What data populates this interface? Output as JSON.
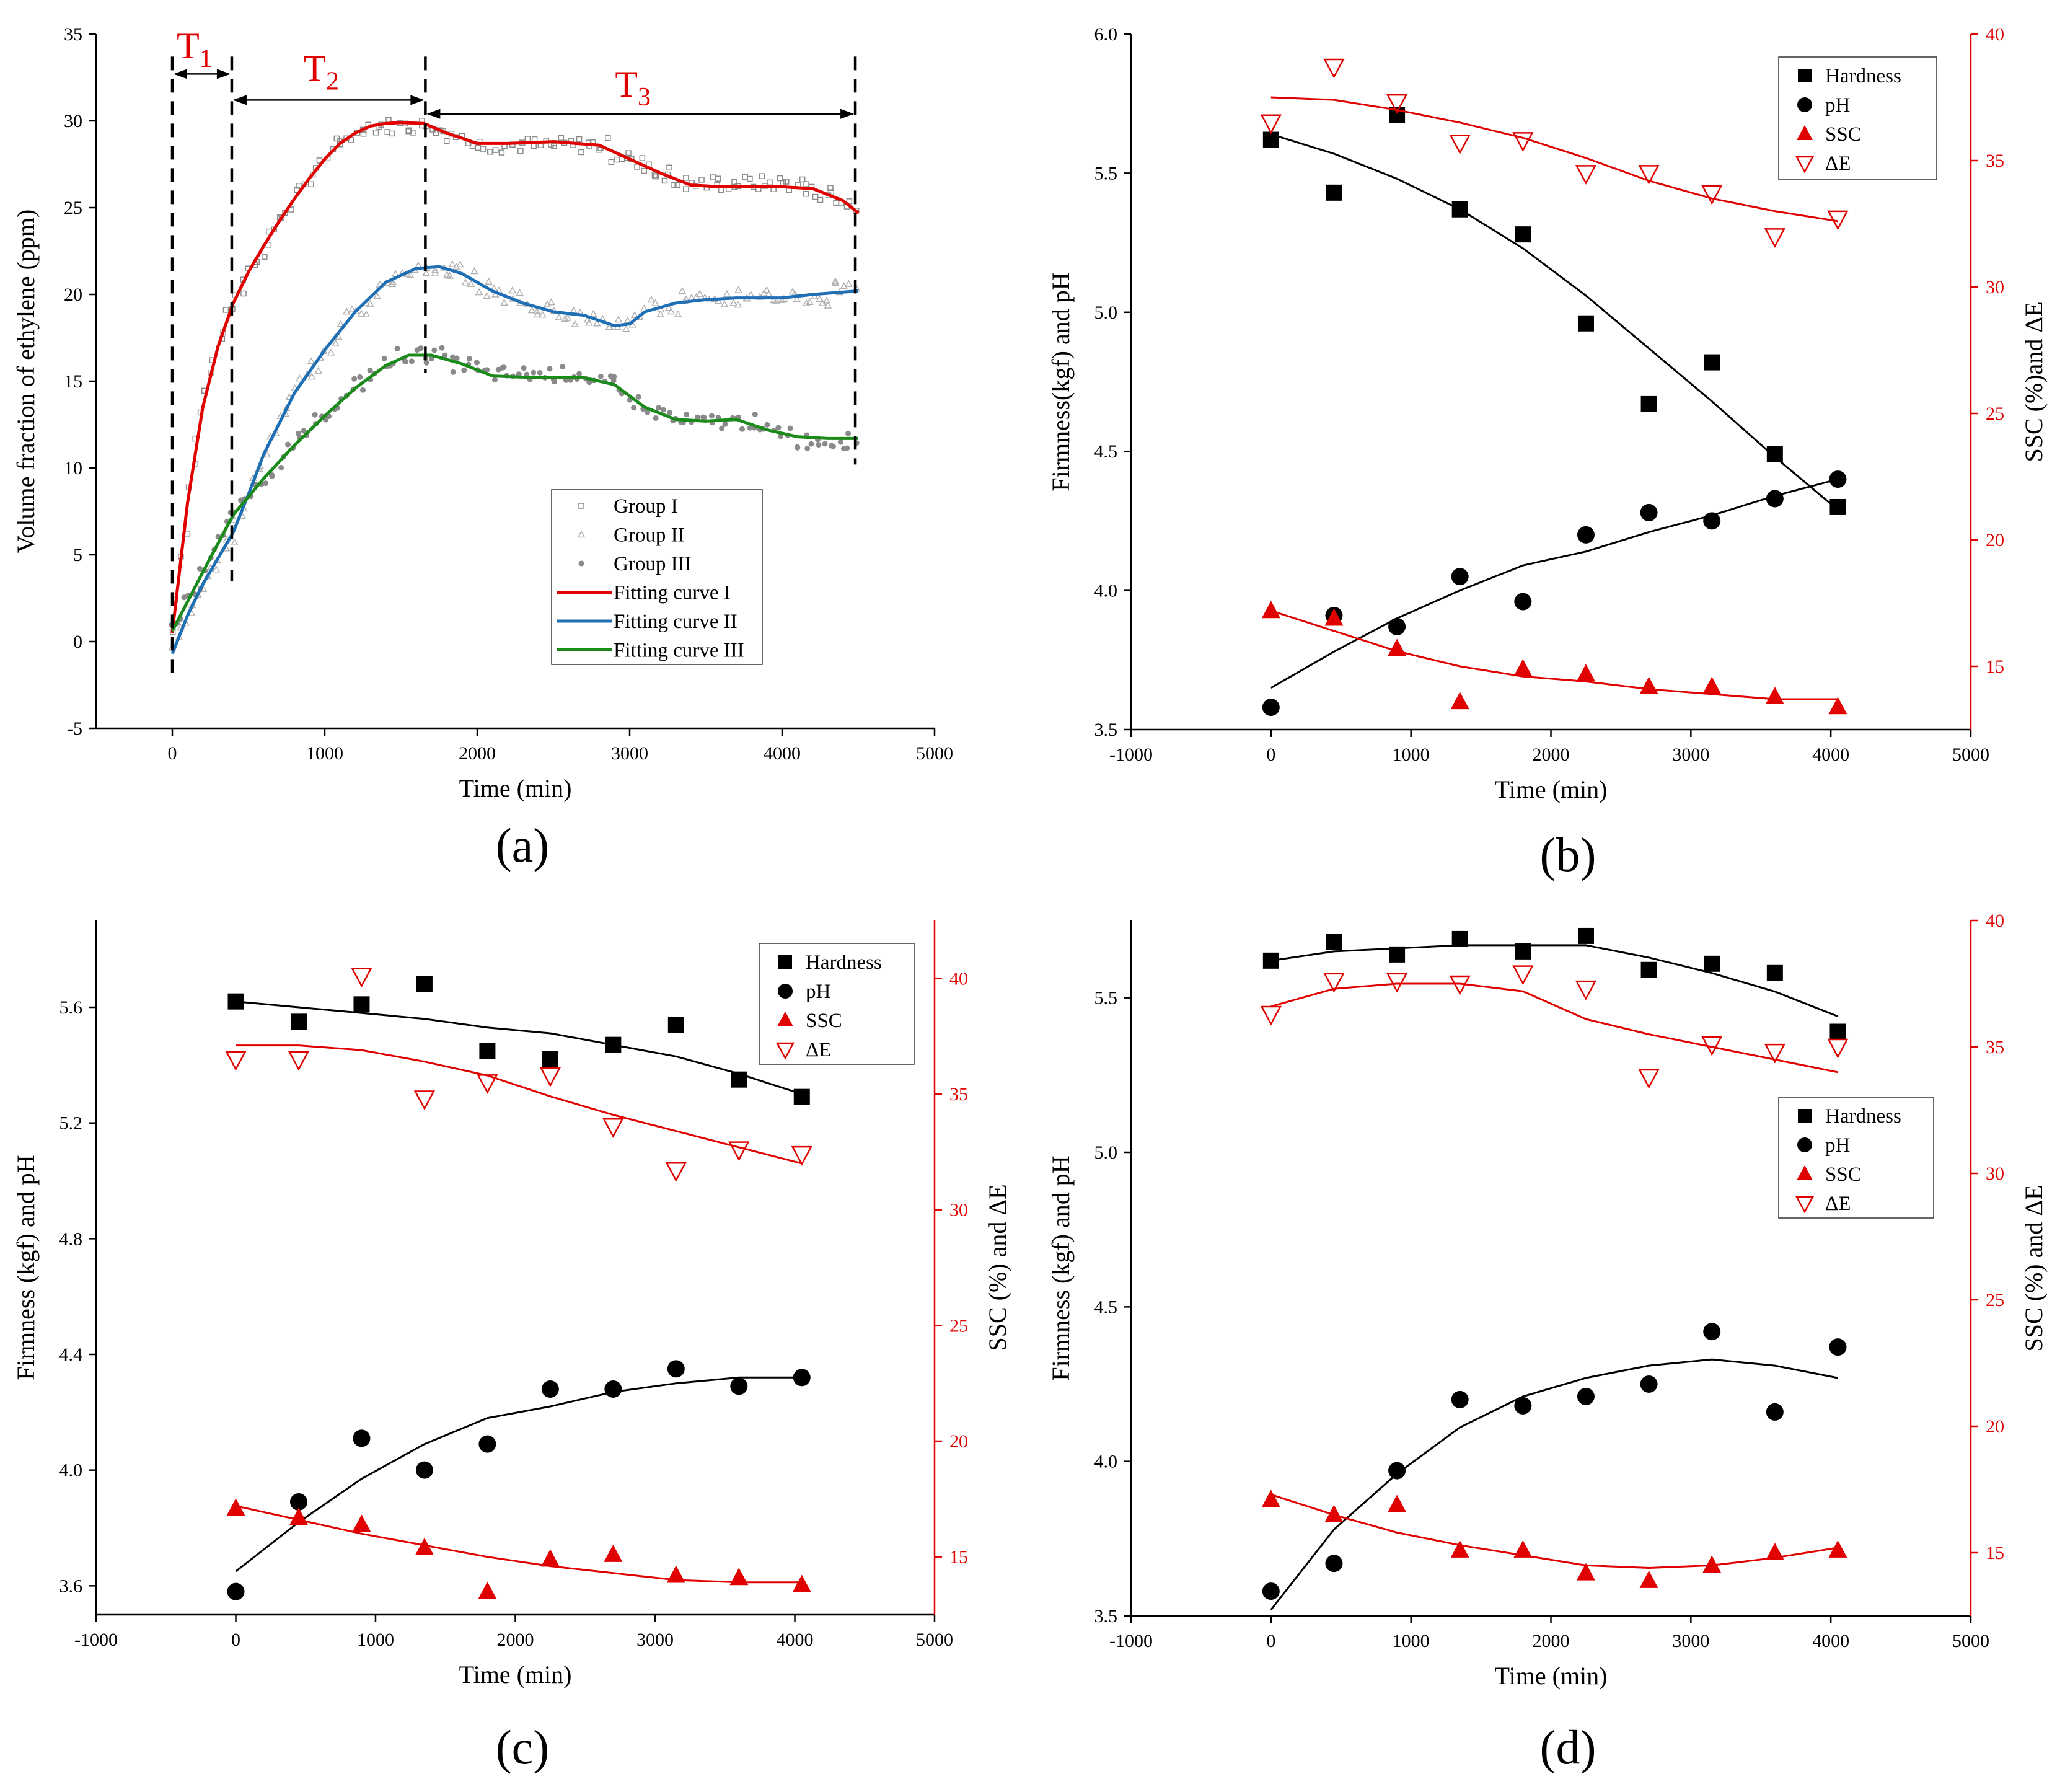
{
  "figure": {
    "panels_labels": [
      "(a)",
      "(b)",
      "(c)",
      "(d)"
    ]
  },
  "colors": {
    "black": "#000000",
    "red": "#e00000",
    "blue": "#1f6fb5",
    "green": "#1a8a1a",
    "gray": "#8a8a8a"
  },
  "chart_data": [
    {
      "id": "a",
      "type": "scatter",
      "panel_label": "(a)",
      "xlabel": "Time (min)",
      "ylabel": "Volume fraction of ethylene (ppm)",
      "xlim": [
        -500,
        5000
      ],
      "ylim": [
        -5,
        35
      ],
      "xticks": [
        0,
        1000,
        2000,
        3000,
        4000,
        5000
      ],
      "yticks": [
        -5,
        0,
        5,
        10,
        15,
        20,
        25,
        30,
        35
      ],
      "legend": [
        "Group I",
        "Group II",
        "Group III",
        "Fitting curve I",
        "Fitting curve II",
        "Fitting curve III"
      ],
      "phases": [
        {
          "label": "T1",
          "base": "T",
          "sub": "1",
          "from": 0,
          "to": 390
        },
        {
          "label": "T2",
          "base": "T",
          "sub": "2",
          "from": 390,
          "to": 1660
        },
        {
          "label": "T3",
          "base": "T",
          "sub": "3",
          "from": 1660,
          "to": 4480
        }
      ],
      "phase_boundaries": [
        0,
        390,
        1660,
        4480
      ],
      "series": [
        {
          "name": "Fitting curve I",
          "color": "#e00000",
          "x": [
            0,
            100,
            200,
            300,
            400,
            500,
            600,
            700,
            800,
            900,
            1000,
            1100,
            1200,
            1300,
            1400,
            1500,
            1650,
            1800,
            2000,
            2200,
            2500,
            2800,
            3000,
            3200,
            3400,
            3600,
            3800,
            4000,
            4200,
            4400,
            4500
          ],
          "y": [
            0.5,
            8,
            13.5,
            17,
            19.5,
            21.3,
            22.8,
            24.2,
            25.5,
            26.7,
            27.8,
            28.7,
            29.3,
            29.7,
            29.85,
            29.9,
            29.85,
            29.3,
            28.7,
            28.7,
            28.8,
            28.6,
            27.8,
            27,
            26.3,
            26.2,
            26.2,
            26.2,
            26.1,
            25.4,
            24.7
          ]
        },
        {
          "name": "Fitting curve II",
          "color": "#1f6fb5",
          "x": [
            0,
            100,
            200,
            300,
            400,
            500,
            600,
            800,
            1000,
            1200,
            1400,
            1600,
            1750,
            1900,
            2100,
            2300,
            2500,
            2700,
            2900,
            3000,
            3100,
            3300,
            3500,
            3700,
            4000,
            4200,
            4500
          ],
          "y": [
            -0.7,
            1.5,
            3.3,
            4.8,
            6.3,
            8.5,
            10.8,
            14.3,
            16.8,
            19,
            20.7,
            21.5,
            21.6,
            21.2,
            20.2,
            19.5,
            19,
            18.8,
            18.2,
            18.3,
            19,
            19.5,
            19.7,
            19.8,
            19.8,
            20,
            20.2
          ]
        },
        {
          "name": "Fitting curve III",
          "color": "#1a8a1a",
          "x": [
            0,
            200,
            400,
            600,
            800,
            1000,
            1200,
            1400,
            1550,
            1700,
            1900,
            2100,
            2400,
            2700,
            2900,
            3100,
            3300,
            3500,
            3700,
            3900,
            4100,
            4300,
            4500
          ],
          "y": [
            0.6,
            4,
            7.3,
            9.4,
            11.3,
            13,
            14.6,
            15.9,
            16.5,
            16.5,
            16,
            15.3,
            15.2,
            15.2,
            14.8,
            13.5,
            12.8,
            12.7,
            12.8,
            12.2,
            11.8,
            11.7,
            11.7
          ]
        }
      ]
    },
    {
      "id": "b",
      "type": "scatter",
      "panel_label": "(b)",
      "xlabel": "Time (min)",
      "ylabel": "Firmness(kgf) and pH",
      "y2label": "SSC (%)and ΔE",
      "xlim": [
        -1000,
        5000
      ],
      "ylim": [
        3.5,
        6.0
      ],
      "y2lim": [
        12.5,
        40
      ],
      "xticks": [
        -1000,
        0,
        1000,
        2000,
        3000,
        4000,
        5000
      ],
      "yticks": [
        3.5,
        4.0,
        4.5,
        5.0,
        5.5,
        6.0
      ],
      "ytick_labels": [
        "3.5",
        "4.0",
        "4.5",
        "5.0",
        "5.5",
        "6.0"
      ],
      "y2ticks": [
        15,
        20,
        25,
        30,
        35,
        40
      ],
      "legend": [
        "Hardness",
        "pH",
        "SSC",
        "ΔE"
      ],
      "x": [
        0,
        450,
        900,
        1350,
        1800,
        2250,
        2700,
        3150,
        3600,
        4050
      ],
      "series": [
        {
          "name": "Hardness",
          "axis": "left",
          "marker": "square",
          "color": "#000000",
          "values": [
            5.62,
            5.43,
            5.71,
            5.37,
            5.28,
            4.96,
            4.67,
            4.82,
            4.49,
            4.3
          ],
          "fit": [
            5.64,
            5.57,
            5.48,
            5.37,
            5.23,
            5.06,
            4.87,
            4.68,
            4.48,
            4.29
          ]
        },
        {
          "name": "pH",
          "axis": "left",
          "marker": "circle",
          "color": "#000000",
          "values": [
            3.58,
            3.91,
            3.87,
            4.05,
            3.96,
            4.2,
            4.28,
            4.25,
            4.33,
            4.4
          ],
          "fit": [
            3.65,
            3.78,
            3.9,
            4.0,
            4.09,
            4.14,
            4.21,
            4.27,
            4.34,
            4.4
          ]
        },
        {
          "name": "SSC",
          "axis": "right",
          "marker": "triangle-up",
          "color": "#e00000",
          "values": [
            17.2,
            16.9,
            15.7,
            13.6,
            14.9,
            14.7,
            14.2,
            14.2,
            13.8,
            13.4
          ],
          "fit": [
            17.2,
            16.4,
            15.6,
            15.0,
            14.6,
            14.4,
            14.1,
            13.9,
            13.7,
            13.7
          ]
        },
        {
          "name": "ΔE",
          "axis": "right",
          "marker": "triangle-down-open",
          "color": "#e00000",
          "values": [
            36.5,
            38.7,
            37.3,
            35.7,
            35.8,
            34.5,
            34.5,
            33.7,
            32.0,
            32.7
          ],
          "fit": [
            37.5,
            37.4,
            37.0,
            36.5,
            35.9,
            35.1,
            34.2,
            33.5,
            33.0,
            32.6
          ]
        }
      ]
    },
    {
      "id": "c",
      "type": "scatter",
      "panel_label": "(c)",
      "xlabel": "Time (min)",
      "ylabel": "Firmness (kgf) and pH",
      "y2label": "SSC (%) and ΔE",
      "xlim": [
        -1000,
        5000
      ],
      "ylim": [
        3.5,
        5.9
      ],
      "y2lim": [
        12.5,
        42.5
      ],
      "xticks": [
        -1000,
        0,
        1000,
        2000,
        3000,
        4000,
        5000
      ],
      "yticks": [
        3.6,
        4.0,
        4.4,
        4.8,
        5.2,
        5.6
      ],
      "ytick_labels": [
        "3.6",
        "4.0",
        "4.4",
        "4.8",
        "5.2",
        "5.6"
      ],
      "y2ticks": [
        15,
        20,
        25,
        30,
        35,
        40
      ],
      "legend": [
        "Hardness",
        "pH",
        "SSC",
        "ΔE"
      ],
      "x": [
        0,
        450,
        900,
        1350,
        1800,
        2250,
        2700,
        3150,
        3600,
        4050
      ],
      "series": [
        {
          "name": "Hardness",
          "axis": "left",
          "marker": "square",
          "color": "#000000",
          "values": [
            5.62,
            5.55,
            5.61,
            5.68,
            5.45,
            5.42,
            5.47,
            5.54,
            5.35,
            5.29
          ],
          "fit": [
            5.62,
            5.6,
            5.58,
            5.56,
            5.53,
            5.51,
            5.47,
            5.43,
            5.37,
            5.3
          ]
        },
        {
          "name": "pH",
          "axis": "left",
          "marker": "circle",
          "color": "#000000",
          "values": [
            3.58,
            3.89,
            4.11,
            4.0,
            4.09,
            4.28,
            4.28,
            4.35,
            4.29,
            4.32
          ],
          "fit": [
            3.65,
            3.82,
            3.97,
            4.09,
            4.18,
            4.22,
            4.27,
            4.3,
            4.32,
            4.32
          ]
        },
        {
          "name": "SSC",
          "axis": "right",
          "marker": "triangle-up",
          "color": "#e00000",
          "values": [
            17.1,
            16.7,
            16.4,
            15.4,
            13.5,
            14.9,
            15.1,
            14.2,
            14.1,
            13.8
          ],
          "fit": [
            17.2,
            16.6,
            16.0,
            15.5,
            15.0,
            14.6,
            14.3,
            14.0,
            13.9,
            13.9
          ]
        },
        {
          "name": "ΔE",
          "axis": "right",
          "marker": "triangle-down-open",
          "color": "#e00000",
          "values": [
            36.5,
            36.5,
            40.1,
            34.8,
            35.5,
            35.8,
            33.6,
            31.7,
            32.6,
            32.4
          ],
          "fit": [
            37.1,
            37.1,
            36.9,
            36.4,
            35.8,
            34.9,
            34.1,
            33.4,
            32.7,
            32.0
          ]
        }
      ]
    },
    {
      "id": "d",
      "type": "scatter",
      "panel_label": "(d)",
      "xlabel": "Time (min)",
      "ylabel": "Firmness (kgf) and pH",
      "y2label": "SSC (%) and ΔE",
      "xlim": [
        -1000,
        5000
      ],
      "ylim": [
        3.5,
        5.75
      ],
      "y2lim": [
        12.5,
        40
      ],
      "xticks": [
        -1000,
        0,
        1000,
        2000,
        3000,
        4000,
        5000
      ],
      "yticks": [
        3.5,
        4.0,
        4.5,
        5.0,
        5.5
      ],
      "ytick_labels": [
        "3.5",
        "4.0",
        "4.5",
        "5.0",
        "5.5"
      ],
      "y2ticks": [
        15,
        20,
        25,
        30,
        35,
        40
      ],
      "legend": [
        "Hardness",
        "pH",
        "SSC",
        "ΔE"
      ],
      "x": [
        0,
        450,
        900,
        1350,
        1800,
        2250,
        2700,
        3150,
        3600,
        4050
      ],
      "series": [
        {
          "name": "Hardness",
          "axis": "left",
          "marker": "square",
          "color": "#000000",
          "values": [
            5.62,
            5.68,
            5.64,
            5.69,
            5.65,
            5.7,
            5.59,
            5.61,
            5.58,
            5.39
          ],
          "fit": [
            5.62,
            5.65,
            5.66,
            5.67,
            5.67,
            5.67,
            5.63,
            5.58,
            5.52,
            5.44
          ]
        },
        {
          "name": "pH",
          "axis": "left",
          "marker": "circle",
          "color": "#000000",
          "values": [
            3.58,
            3.67,
            3.97,
            4.2,
            4.18,
            4.21,
            4.25,
            4.42,
            4.16,
            4.37
          ],
          "fit": [
            3.52,
            3.78,
            3.96,
            4.11,
            4.21,
            4.27,
            4.31,
            4.33,
            4.31,
            4.27
          ]
        },
        {
          "name": "SSC",
          "axis": "right",
          "marker": "triangle-up",
          "color": "#e00000",
          "values": [
            17.1,
            16.5,
            16.9,
            15.1,
            15.1,
            14.2,
            13.9,
            14.5,
            15.0,
            15.1
          ],
          "fit": [
            17.3,
            16.5,
            15.8,
            15.3,
            14.9,
            14.5,
            14.4,
            14.5,
            14.8,
            15.2
          ]
        },
        {
          "name": "ΔE",
          "axis": "right",
          "marker": "triangle-down-open",
          "color": "#e00000",
          "values": [
            36.3,
            37.6,
            37.6,
            37.5,
            37.9,
            37.3,
            33.8,
            35.1,
            34.8,
            35.0
          ],
          "fit": [
            36.6,
            37.3,
            37.5,
            37.5,
            37.2,
            36.1,
            35.5,
            35.0,
            34.5,
            34.0
          ]
        }
      ]
    }
  ]
}
